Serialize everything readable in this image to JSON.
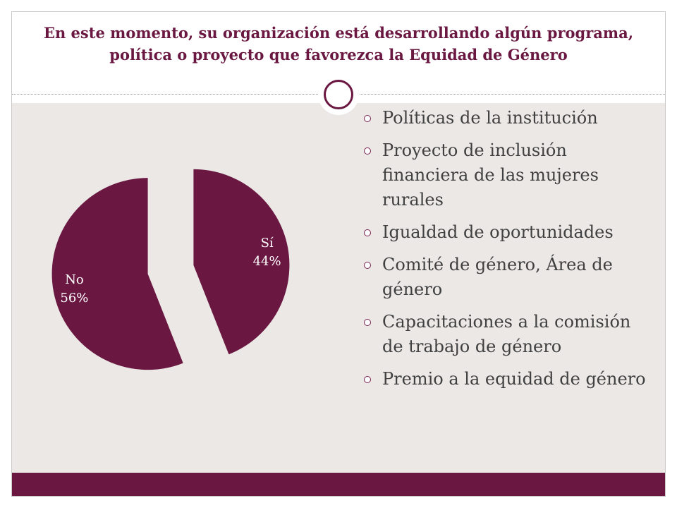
{
  "slide": {
    "title": "En este momento, su organización está desarrollando algún programa, política o proyecto que favorezca la Equidad de Género"
  },
  "chart_data": {
    "type": "pie",
    "slices": [
      {
        "name": "Sí",
        "value": 44,
        "label": "44%",
        "color": "#6a1841",
        "exploded": true
      },
      {
        "name": "No",
        "value": 56,
        "label": "56%",
        "color": "#6a1841",
        "exploded": true
      }
    ],
    "start_angle": "12 o'clock",
    "direction": "clockwise"
  },
  "bullets": [
    "Políticas de la institución",
    "Proyecto de inclusión financiera de las mujeres rurales",
    "Igualdad de oportunidades",
    "Comité de género, Área de género",
    "Capacitaciones a la comisión de trabajo de género",
    "Premio a la equidad de género"
  ],
  "theme": {
    "accent": "#6a1841",
    "content_bg": "#ebe8e6",
    "text": "#404040"
  }
}
